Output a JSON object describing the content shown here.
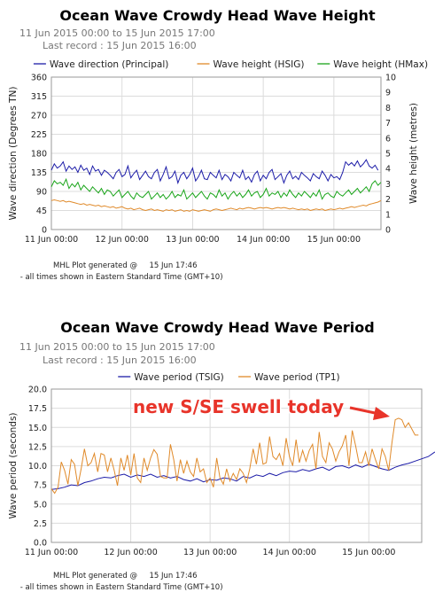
{
  "charts": [
    {
      "title": "Ocean Wave Crowdy Head Wave Height",
      "date_range": "11 Jun 2015 00:00 to 15 Jun 2015 17:00",
      "last_record": "Last record : 15 Jun 2015 16:00",
      "footer_generated": "MHL Plot generated @     15 Jun 17:46",
      "footer_times": " - all times shown in Eastern Standard Time (GMT+10)",
      "legend": [
        "Wave direction (Principal)",
        "Wave height (HSIG)",
        "Wave height (HMax)"
      ],
      "colors": [
        "#1c1ca8",
        "#e08a2a",
        "#1aa51a"
      ]
    },
    {
      "title": "Ocean Wave Crowdy Head Wave Period",
      "date_range": "11 Jun 2015 00:00 to 15 Jun 2015 17:00",
      "last_record": "Last record : 15 Jun 2015 16:00",
      "footer_generated": "MHL Plot generated @     15 Jun 17:46",
      "footer_times": " - all times shown in Eastern Standard Time (GMT+10)",
      "legend": [
        "Wave period (TSIG)",
        "Wave period (TP1)"
      ],
      "colors": [
        "#1c1ca8",
        "#e08a2a"
      ],
      "annotation": "new S/SE swell today",
      "annotation_color": "#e8342a"
    }
  ],
  "chart_data": [
    {
      "type": "line",
      "title": "Ocean Wave Crowdy Head Wave Height",
      "x_tick_labels": [
        "11 Jun 00:00",
        "12 Jun 00:00",
        "13 Jun 00:00",
        "14 Jun 00:00",
        "15 Jun 00:00"
      ],
      "x_range_hours": [
        0,
        112
      ],
      "ylabel_left": "Wave direction (Degrees TN)",
      "ylabel_right": "Wave height (metres)",
      "ylim_left": [
        0,
        360
      ],
      "ylim_right": [
        0,
        10
      ],
      "yticks_left": [
        "0",
        "45",
        "90",
        "135",
        "180",
        "225",
        "270",
        "315",
        "360"
      ],
      "yticks_right": [
        "0",
        "1",
        "2",
        "3",
        "4",
        "5",
        "6",
        "7",
        "8",
        "9",
        "10"
      ],
      "grid": true,
      "legend_position": "top",
      "series": [
        {
          "name": "Wave direction (Principal)",
          "axis": "left",
          "x_step_hours": 1,
          "values": [
            140,
            155,
            145,
            150,
            160,
            138,
            150,
            142,
            148,
            135,
            152,
            140,
            145,
            130,
            150,
            138,
            142,
            128,
            140,
            135,
            128,
            120,
            135,
            142,
            125,
            130,
            150,
            122,
            132,
            140,
            118,
            128,
            138,
            125,
            120,
            135,
            142,
            115,
            130,
            148,
            120,
            125,
            138,
            110,
            128,
            135,
            120,
            130,
            145,
            115,
            125,
            140,
            120,
            118,
            135,
            128,
            122,
            140,
            118,
            130,
            125,
            115,
            135,
            128,
            122,
            140,
            118,
            125,
            112,
            130,
            138,
            115,
            128,
            120,
            135,
            142,
            118,
            125,
            132,
            110,
            128,
            138,
            120,
            126,
            118,
            135,
            128,
            122,
            115,
            132,
            125,
            120,
            138,
            128,
            115,
            130,
            122,
            125,
            118,
            135,
            160,
            152,
            158,
            150,
            162,
            148,
            155,
            165,
            150,
            145,
            152,
            140
          ]
        },
        {
          "name": "Wave height (HSIG)",
          "axis": "right",
          "x_step_hours": 1,
          "values": [
            1.9,
            1.95,
            1.9,
            1.85,
            1.9,
            1.8,
            1.85,
            1.8,
            1.75,
            1.7,
            1.65,
            1.7,
            1.6,
            1.65,
            1.6,
            1.55,
            1.6,
            1.5,
            1.55,
            1.5,
            1.45,
            1.5,
            1.4,
            1.45,
            1.5,
            1.4,
            1.35,
            1.4,
            1.3,
            1.35,
            1.4,
            1.3,
            1.25,
            1.3,
            1.35,
            1.25,
            1.3,
            1.25,
            1.2,
            1.3,
            1.25,
            1.3,
            1.2,
            1.25,
            1.3,
            1.2,
            1.25,
            1.2,
            1.3,
            1.25,
            1.2,
            1.25,
            1.3,
            1.25,
            1.2,
            1.3,
            1.35,
            1.3,
            1.25,
            1.3,
            1.35,
            1.4,
            1.35,
            1.3,
            1.4,
            1.35,
            1.4,
            1.45,
            1.4,
            1.35,
            1.4,
            1.45,
            1.4,
            1.45,
            1.4,
            1.35,
            1.4,
            1.45,
            1.4,
            1.45,
            1.4,
            1.35,
            1.4,
            1.35,
            1.3,
            1.35,
            1.3,
            1.35,
            1.25,
            1.3,
            1.35,
            1.3,
            1.35,
            1.25,
            1.3,
            1.35,
            1.3,
            1.35,
            1.4,
            1.35,
            1.4,
            1.45,
            1.5,
            1.45,
            1.5,
            1.55,
            1.6,
            1.55,
            1.65,
            1.7,
            1.75,
            1.8,
            1.9
          ]
        },
        {
          "name": "Wave height (HMax)",
          "axis": "right",
          "x_step_hours": 1,
          "values": [
            2.8,
            3.2,
            3.0,
            3.1,
            2.9,
            3.3,
            2.7,
            3.0,
            2.8,
            3.1,
            2.6,
            2.9,
            2.7,
            2.5,
            2.8,
            2.6,
            2.4,
            2.7,
            2.3,
            2.6,
            2.5,
            2.2,
            2.4,
            2.6,
            2.1,
            2.3,
            2.5,
            2.2,
            2.0,
            2.4,
            2.2,
            2.1,
            2.3,
            2.5,
            2.0,
            2.2,
            2.4,
            2.1,
            2.3,
            2.0,
            2.2,
            2.5,
            2.1,
            2.3,
            2.2,
            2.6,
            2.0,
            2.2,
            2.4,
            2.1,
            2.3,
            2.5,
            2.2,
            2.0,
            2.4,
            2.3,
            2.1,
            2.6,
            2.2,
            2.4,
            2.0,
            2.3,
            2.5,
            2.2,
            2.4,
            2.1,
            2.3,
            2.6,
            2.2,
            2.4,
            2.5,
            2.1,
            2.3,
            2.7,
            2.2,
            2.4,
            2.3,
            2.5,
            2.1,
            2.4,
            2.2,
            2.6,
            2.3,
            2.1,
            2.4,
            2.2,
            2.5,
            2.3,
            2.1,
            2.4,
            2.2,
            2.6,
            2.0,
            2.3,
            2.4,
            2.2,
            2.1,
            2.5,
            2.3,
            2.2,
            2.4,
            2.6,
            2.3,
            2.5,
            2.7,
            2.4,
            2.6,
            2.8,
            2.5,
            3.0,
            3.2,
            2.9,
            3.1
          ]
        }
      ]
    },
    {
      "type": "line",
      "title": "Ocean Wave Crowdy Head Wave Period",
      "x_tick_labels": [
        "11 Jun 00:00",
        "12 Jun 00:00",
        "13 Jun 00:00",
        "14 Jun 00:00",
        "15 Jun 00:00"
      ],
      "x_range_hours": [
        0,
        112
      ],
      "ylabel": "Wave period (seconds)",
      "ylim": [
        0,
        20
      ],
      "yticks": [
        "0.0",
        "2.5",
        "5.0",
        "7.5",
        "10.0",
        "12.5",
        "15.0",
        "17.5",
        "20.0"
      ],
      "grid": true,
      "legend_position": "top",
      "series": [
        {
          "name": "Wave period (TSIG)",
          "x_step_hours": 2,
          "values": [
            6.9,
            7.0,
            7.2,
            7.5,
            7.4,
            7.8,
            8.0,
            8.3,
            8.5,
            8.4,
            8.7,
            8.9,
            8.5,
            8.8,
            8.6,
            8.9,
            8.5,
            8.7,
            8.4,
            8.6,
            8.2,
            8.0,
            8.3,
            7.9,
            8.2,
            8.1,
            8.4,
            8.3,
            8.0,
            8.6,
            8.4,
            8.8,
            8.6,
            9.0,
            8.7,
            9.1,
            9.3,
            9.2,
            9.5,
            9.3,
            9.6,
            9.8,
            9.4,
            9.9,
            10.0,
            9.7,
            10.1,
            9.8,
            10.2,
            9.9,
            9.6,
            9.4,
            9.8,
            10.1,
            10.3,
            10.6,
            10.9,
            11.2,
            11.8
          ]
        },
        {
          "name": "Wave period (TP1)",
          "x_step_hours": 1,
          "values": [
            7.0,
            6.4,
            7.2,
            10.5,
            9.4,
            7.6,
            10.8,
            10.2,
            7.4,
            9.6,
            12.2,
            10.0,
            10.4,
            11.6,
            9.2,
            11.6,
            11.4,
            9.2,
            11.0,
            9.4,
            7.4,
            11.0,
            9.4,
            11.4,
            8.8,
            11.6,
            8.4,
            7.8,
            11.0,
            9.4,
            11.0,
            12.1,
            11.5,
            8.6,
            8.4,
            8.4,
            12.8,
            10.8,
            8.0,
            10.8,
            9.0,
            10.6,
            9.2,
            8.6,
            11.0,
            9.2,
            9.6,
            7.8,
            8.4,
            7.2,
            11.0,
            8.4,
            7.6,
            9.6,
            8.0,
            9.0,
            8.2,
            9.6,
            9.0,
            7.8,
            9.6,
            12.2,
            10.2,
            13.0,
            10.2,
            10.4,
            13.8,
            11.2,
            10.8,
            11.6,
            10.0,
            13.6,
            11.2,
            10.0,
            13.4,
            10.4,
            12.0,
            10.6,
            12.0,
            12.8,
            9.6,
            14.4,
            11.2,
            10.4,
            13.0,
            12.2,
            10.6,
            11.8,
            12.6,
            14.0,
            10.0,
            14.6,
            12.6,
            10.4,
            10.4,
            11.8,
            10.0,
            12.2,
            10.8,
            9.6,
            12.2,
            11.2,
            9.4,
            13.0,
            16.0,
            16.2,
            16.0,
            15.0,
            15.6,
            14.8,
            14.0,
            14.0
          ]
        }
      ]
    }
  ]
}
